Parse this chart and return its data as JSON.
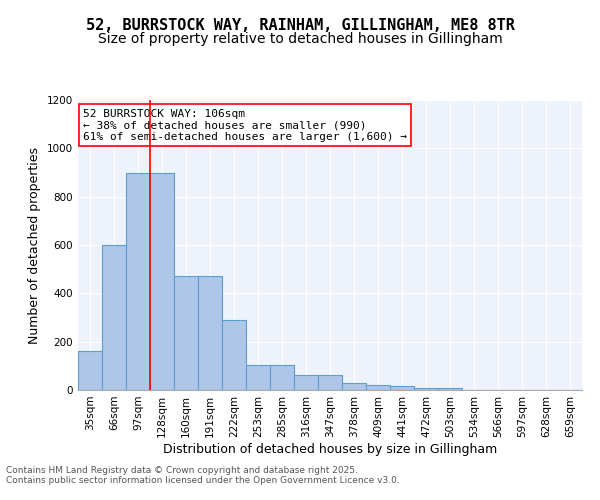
{
  "title_line1": "52, BURRSTOCK WAY, RAINHAM, GILLINGHAM, ME8 8TR",
  "title_line2": "Size of property relative to detached houses in Gillingham",
  "xlabel": "Distribution of detached houses by size in Gillingham",
  "ylabel": "Number of detached properties",
  "categories": [
    "35sqm",
    "66sqm",
    "97sqm",
    "128sqm",
    "160sqm",
    "191sqm",
    "222sqm",
    "253sqm",
    "285sqm",
    "316sqm",
    "347sqm",
    "378sqm",
    "409sqm",
    "441sqm",
    "472sqm",
    "503sqm",
    "534sqm",
    "566sqm",
    "597sqm",
    "628sqm",
    "659sqm"
  ],
  "values": [
    160,
    600,
    900,
    900,
    470,
    470,
    290,
    105,
    105,
    63,
    63,
    28,
    20,
    15,
    10,
    10,
    0,
    0,
    0,
    0,
    0
  ],
  "bar_color": "#aec6e8",
  "bar_edge_color": "#5a9fd4",
  "vline_x": 2.5,
  "vline_color": "red",
  "annotation_text": "52 BURRSTOCK WAY: 106sqm\n← 38% of detached houses are smaller (990)\n61% of semi-detached houses are larger (1,600) →",
  "annotation_box_color": "white",
  "annotation_box_edge": "red",
  "ylim": [
    0,
    1200
  ],
  "yticks": [
    0,
    200,
    400,
    600,
    800,
    1000,
    1200
  ],
  "bg_color": "#eef3fb",
  "footer_text": "Contains HM Land Registry data © Crown copyright and database right 2025.\nContains public sector information licensed under the Open Government Licence v3.0.",
  "title_fontsize": 11,
  "subtitle_fontsize": 10,
  "axis_label_fontsize": 9,
  "tick_fontsize": 7.5,
  "annotation_fontsize": 8
}
